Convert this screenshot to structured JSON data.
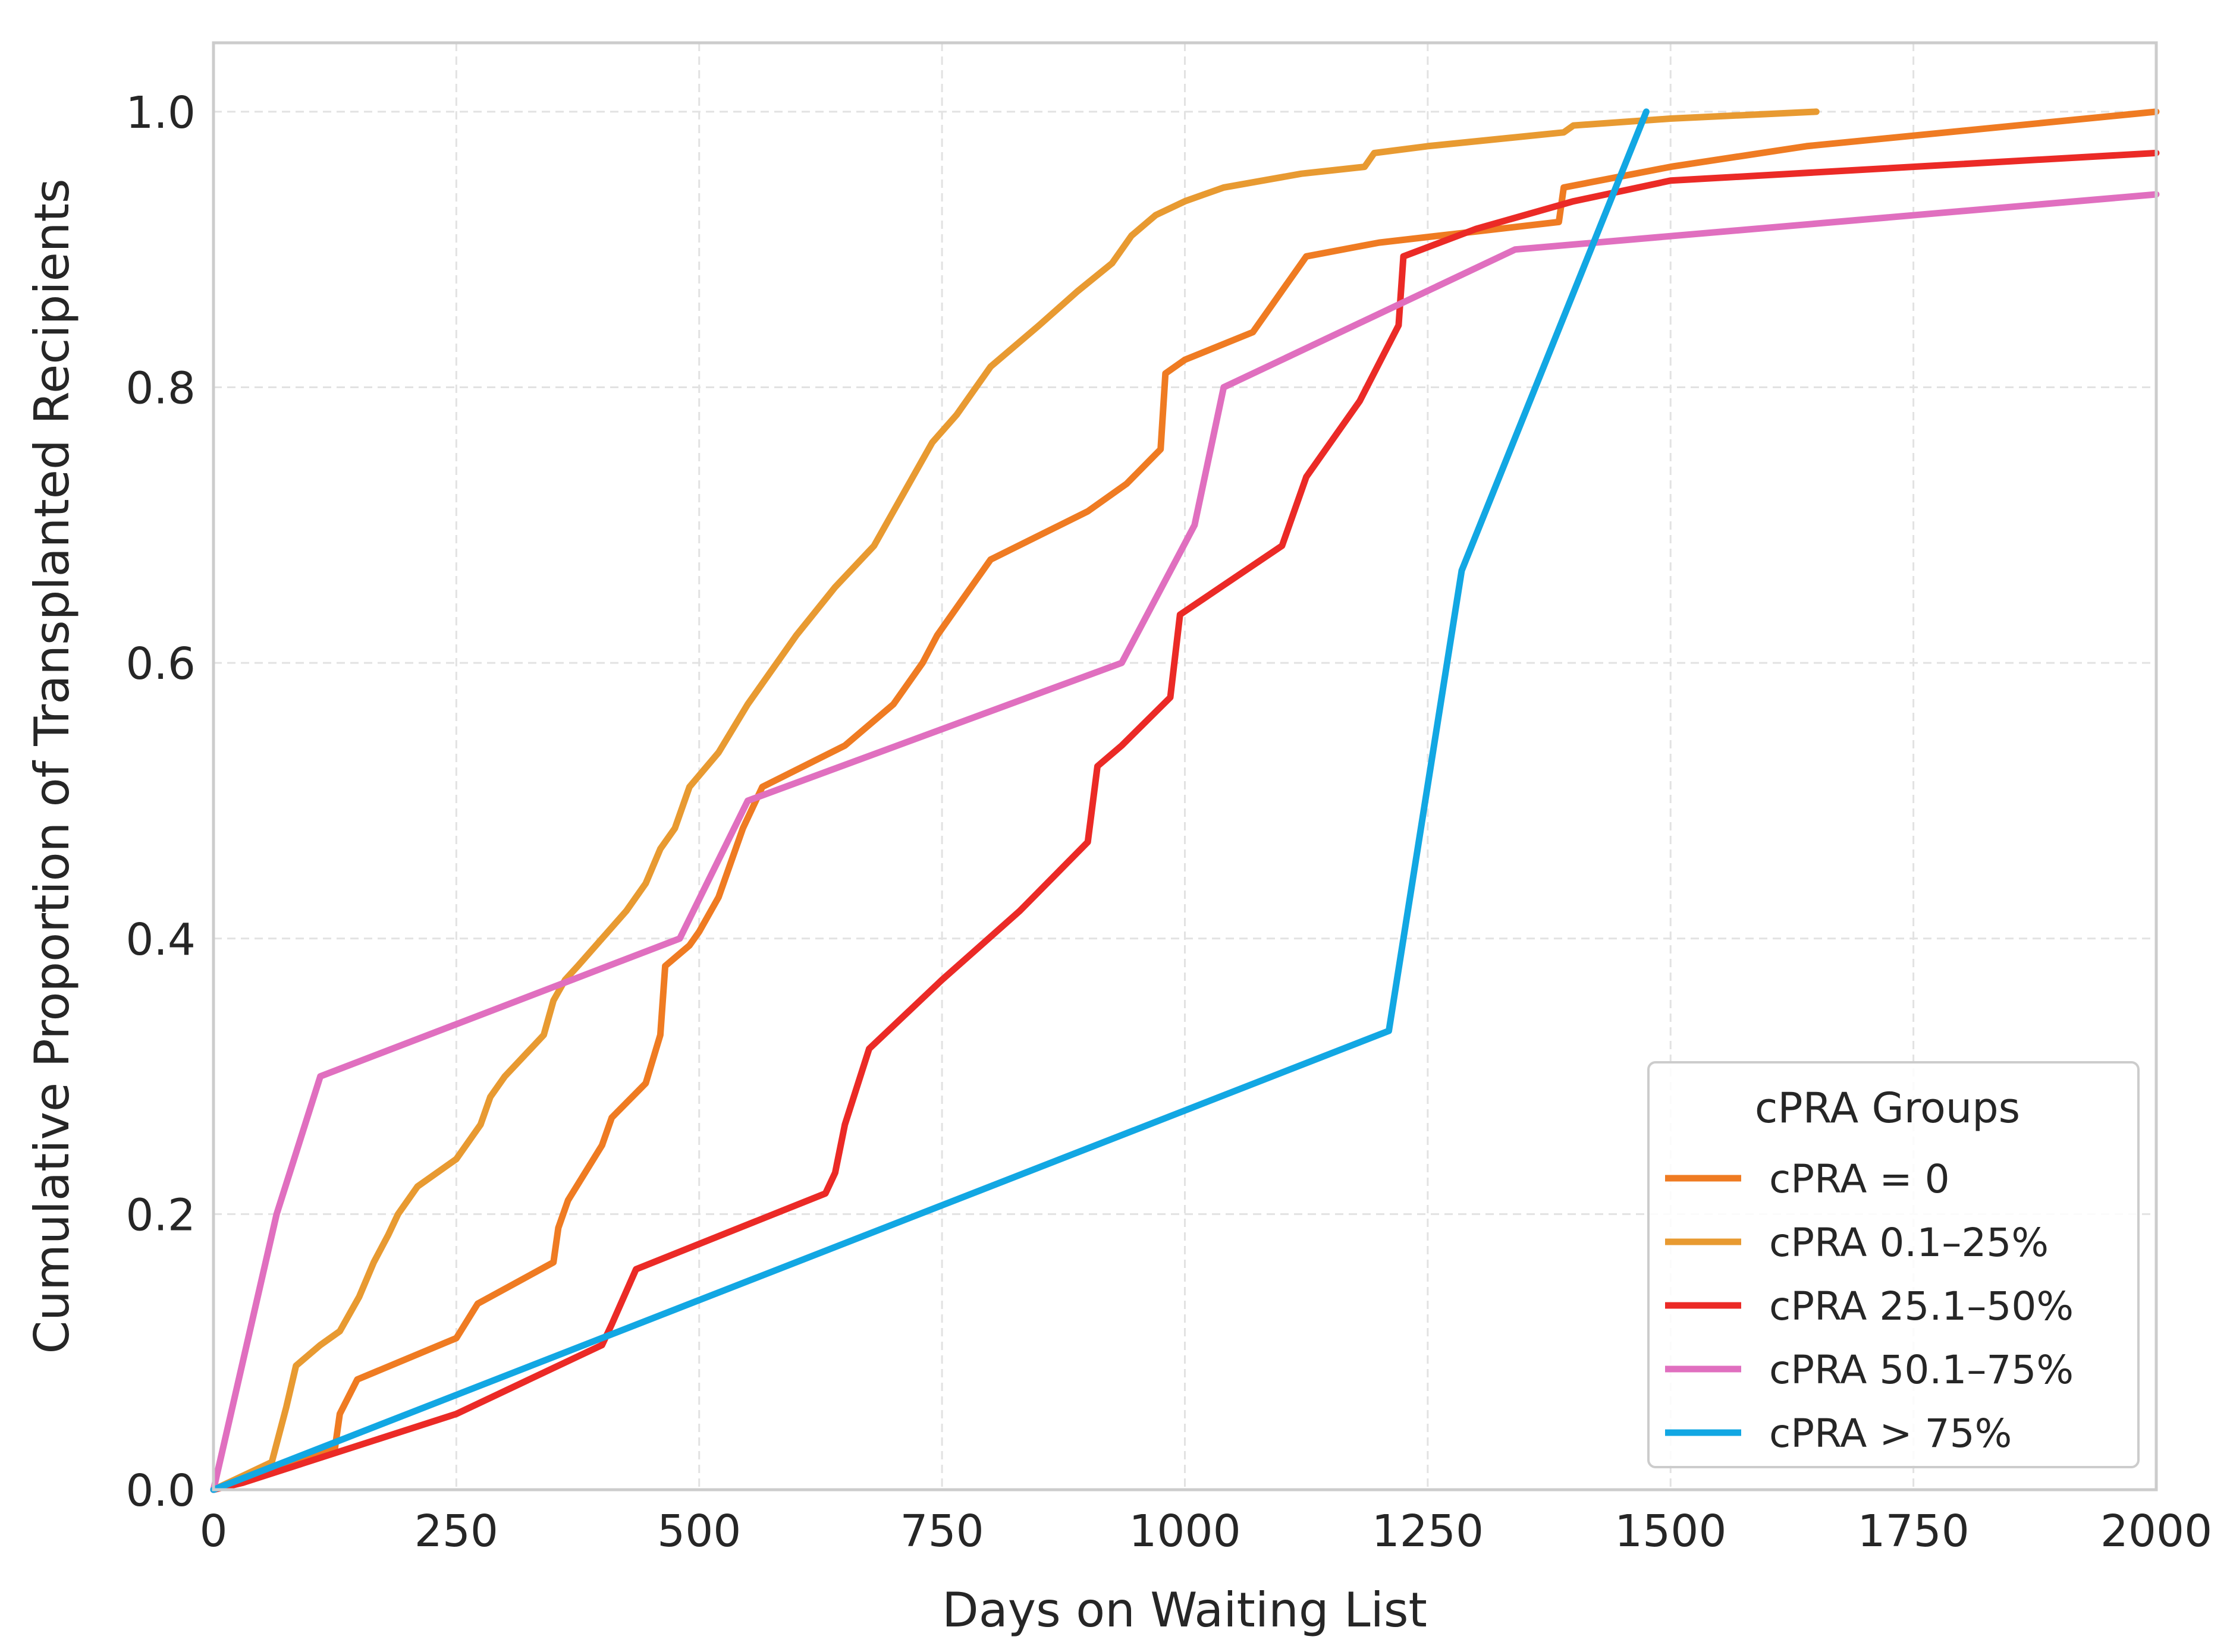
{
  "chart_data": {
    "type": "line",
    "title": "",
    "xlabel": "Days on Waiting List",
    "ylabel": "Cumulative Proportion of Transplanted Recipients",
    "xlim": [
      0,
      2000
    ],
    "ylim": [
      0,
      1.05
    ],
    "xticks": [
      0,
      250,
      500,
      750,
      1000,
      1250,
      1500,
      1750,
      2000
    ],
    "xtick_labels": [
      "0",
      "250",
      "500",
      "750",
      "1000",
      "1250",
      "1500",
      "1750",
      "2000"
    ],
    "yticks": [
      0,
      0.2,
      0.4,
      0.6,
      0.8,
      1.0
    ],
    "ytick_labels": [
      "0.0",
      "0.2",
      "0.4",
      "0.6",
      "0.8",
      "1.0"
    ],
    "grid": true,
    "legend": {
      "title": "cPRA Groups",
      "position": "bottom-right"
    },
    "series": [
      {
        "name": "cPRA = 0",
        "color": "#EF7B22",
        "x": [
          0,
          125,
          130,
          148,
          250,
          272,
          350,
          355,
          365,
          400,
          410,
          445,
          460,
          465,
          490,
          500,
          520,
          545,
          565,
          650,
          700,
          730,
          745,
          770,
          800,
          900,
          940,
          975,
          980,
          1000,
          1070,
          1125,
          1200,
          1385,
          1390,
          1500,
          1640,
          2000
        ],
        "y": [
          0,
          0.03,
          0.055,
          0.08,
          0.11,
          0.135,
          0.165,
          0.19,
          0.21,
          0.25,
          0.27,
          0.295,
          0.33,
          0.38,
          0.395,
          0.405,
          0.43,
          0.48,
          0.51,
          0.54,
          0.57,
          0.6,
          0.62,
          0.645,
          0.675,
          0.71,
          0.73,
          0.755,
          0.81,
          0.82,
          0.84,
          0.895,
          0.905,
          0.92,
          0.945,
          0.96,
          0.975,
          1.0
        ]
      },
      {
        "name": "cPRA 0.1–25%",
        "color": "#E89A31",
        "x": [
          0,
          60,
          75,
          85,
          110,
          130,
          150,
          165,
          180,
          190,
          210,
          250,
          275,
          285,
          300,
          320,
          340,
          350,
          362,
          375,
          400,
          425,
          445,
          460,
          475,
          490,
          520,
          550,
          570,
          600,
          640,
          680,
          700,
          720,
          740,
          765,
          800,
          850,
          890,
          925,
          945,
          970,
          1000,
          1040,
          1120,
          1185,
          1195,
          1250,
          1390,
          1400,
          1500,
          1650
        ],
        "y": [
          0,
          0.02,
          0.06,
          0.09,
          0.105,
          0.115,
          0.14,
          0.165,
          0.185,
          0.2,
          0.22,
          0.24,
          0.265,
          0.285,
          0.3,
          0.315,
          0.33,
          0.355,
          0.37,
          0.38,
          0.4,
          0.42,
          0.44,
          0.465,
          0.48,
          0.51,
          0.535,
          0.57,
          0.59,
          0.62,
          0.655,
          0.685,
          0.71,
          0.735,
          0.76,
          0.78,
          0.815,
          0.845,
          0.87,
          0.89,
          0.91,
          0.925,
          0.935,
          0.945,
          0.955,
          0.96,
          0.97,
          0.975,
          0.985,
          0.99,
          0.995,
          1.0
        ]
      },
      {
        "name": "cPRA 25.1–50%",
        "color": "#EB2A26",
        "x": [
          0,
          30,
          250,
          400,
          410,
          435,
          630,
          640,
          650,
          675,
          750,
          830,
          900,
          910,
          935,
          985,
          995,
          1100,
          1125,
          1180,
          1220,
          1225,
          1300,
          1400,
          1500,
          2000
        ],
        "y": [
          0,
          0.005,
          0.055,
          0.105,
          0.12,
          0.16,
          0.215,
          0.23,
          0.265,
          0.32,
          0.37,
          0.42,
          0.47,
          0.525,
          0.54,
          0.575,
          0.635,
          0.685,
          0.735,
          0.79,
          0.845,
          0.895,
          0.915,
          0.935,
          0.95,
          0.97
        ]
      },
      {
        "name": "cPRA 50.1–75%",
        "color": "#E06FBF",
        "x": [
          0,
          65,
          110,
          480,
          550,
          935,
          1010,
          1040,
          1340,
          2000
        ],
        "y": [
          0,
          0.2,
          0.3,
          0.4,
          0.5,
          0.6,
          0.7,
          0.8,
          0.9,
          0.94
        ]
      },
      {
        "name": "cPRA > 75%",
        "color": "#12A7E3",
        "x": [
          0,
          1210,
          1285,
          1475
        ],
        "y": [
          0,
          0.333,
          0.667,
          1.0
        ]
      }
    ]
  }
}
